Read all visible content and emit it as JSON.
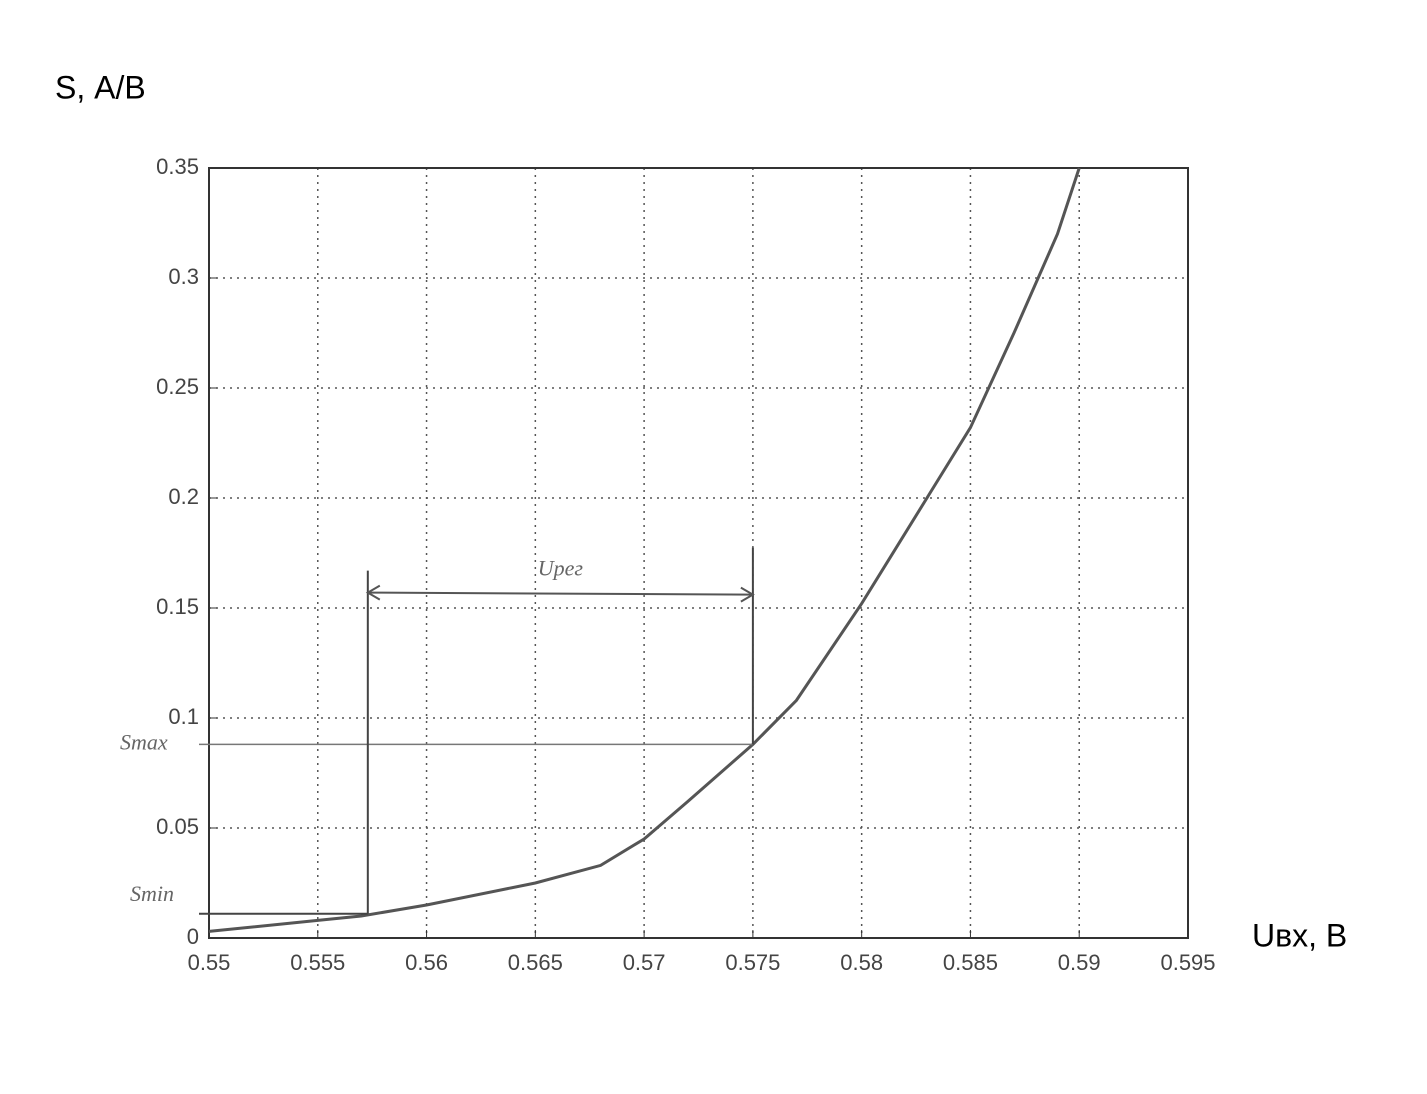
{
  "chart_data": {
    "type": "line",
    "y_label": "S, А/В",
    "x_label": "Uвх, В",
    "x": [
      0.55,
      0.555,
      0.557,
      0.56,
      0.565,
      0.568,
      0.57,
      0.572,
      0.575,
      0.577,
      0.58,
      0.583,
      0.585,
      0.587,
      0.589,
      0.59
    ],
    "values": [
      0.003,
      0.008,
      0.01,
      0.015,
      0.025,
      0.033,
      0.045,
      0.062,
      0.088,
      0.108,
      0.152,
      0.2,
      0.232,
      0.275,
      0.32,
      0.35
    ],
    "color": "#555555",
    "xlim": [
      0.55,
      0.595
    ],
    "xticks": [
      0.55,
      0.555,
      0.56,
      0.565,
      0.57,
      0.575,
      0.58,
      0.585,
      0.59,
      0.595
    ],
    "ylim": [
      0,
      0.35
    ],
    "yticks": [
      0,
      0.05,
      0.1,
      0.15,
      0.2,
      0.25,
      0.3,
      0.35
    ],
    "grid": true,
    "annotations": {
      "s_max": {
        "label": "Smax",
        "y": 0.088
      },
      "s_min": {
        "label": "Smin",
        "y": 0.011
      },
      "u_reg": {
        "label": "Uрег",
        "x_start": 0.5573,
        "x_end": 0.575,
        "y": 0.157
      }
    }
  }
}
